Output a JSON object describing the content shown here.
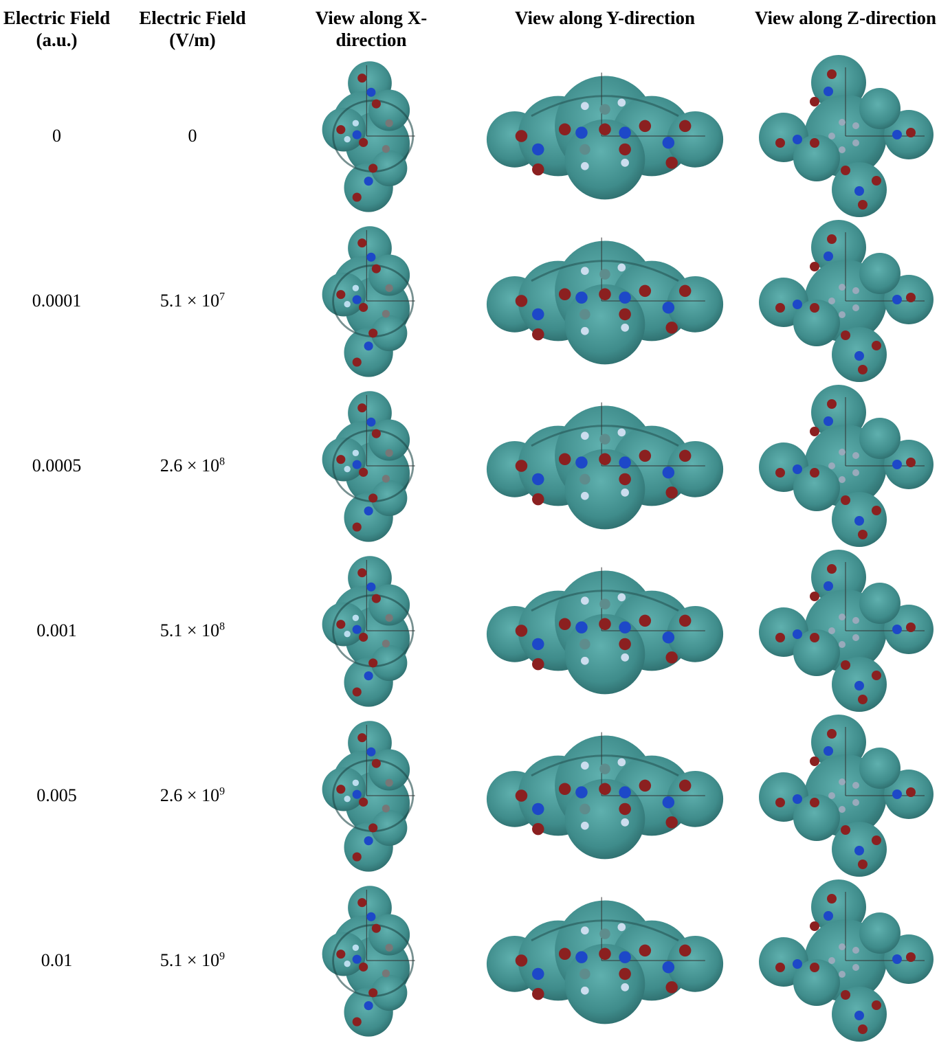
{
  "header": [
    "Electric Field (a.u.)",
    "Electric Field (V/m)",
    "View along X-direction",
    "View along Y-direction",
    "View along Z-direction"
  ],
  "rows": [
    {
      "field_au": "0",
      "field_vm": {
        "mantissa": "0"
      }
    },
    {
      "field_au": "0.0001",
      "field_vm": {
        "mantissa": "5.1 × 10",
        "exponent": "7"
      }
    },
    {
      "field_au": "0.0005",
      "field_vm": {
        "mantissa": "2.6 × 10",
        "exponent": "8"
      }
    },
    {
      "field_au": "0.001",
      "field_vm": {
        "mantissa": "5.1 × 10",
        "exponent": "8"
      }
    },
    {
      "field_au": "0.005",
      "field_vm": {
        "mantissa": "2.6 × 10",
        "exponent": "9"
      }
    },
    {
      "field_au": "0.01",
      "field_vm": {
        "mantissa": "5.1 × 10",
        "exponent": "9"
      }
    }
  ]
}
